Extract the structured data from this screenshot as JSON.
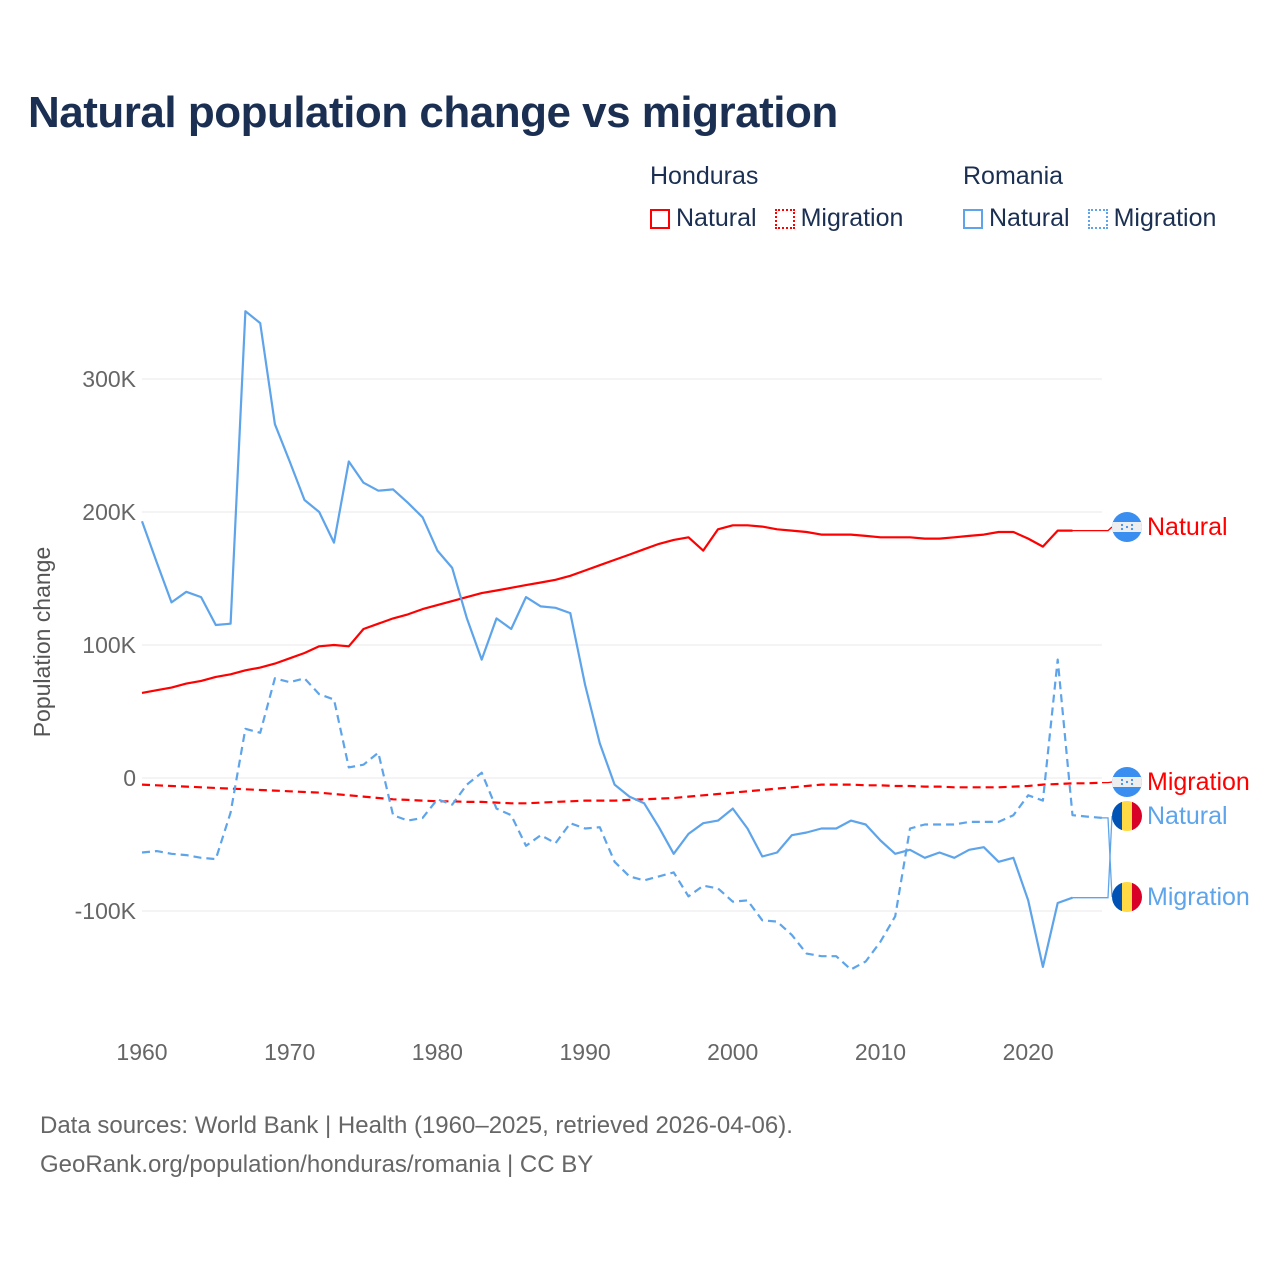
{
  "title": "Natural population change vs migration",
  "legend": {
    "groups": [
      {
        "name": "Honduras",
        "items": [
          {
            "label": "Natural",
            "style": "solid"
          },
          {
            "label": "Migration",
            "style": "dotted"
          }
        ],
        "color": "#ff0000"
      },
      {
        "name": "Romania",
        "items": [
          {
            "label": "Natural",
            "style": "solid"
          },
          {
            "label": "Migration",
            "style": "dotted"
          }
        ],
        "color": "#5ea4ea"
      }
    ]
  },
  "footer": {
    "line1": "Data sources: World Bank | Health (1960–2025, retrieved 2026-04-06).",
    "line2": "GeoRank.org/population/honduras/romania | CC BY"
  },
  "chart_data": {
    "type": "line",
    "title": "Natural population change vs migration",
    "xlabel": "",
    "ylabel": "Population change",
    "xlim": [
      1960,
      2025
    ],
    "ylim": [
      -175000,
      375000
    ],
    "x_ticks": [
      1960,
      1970,
      1980,
      1990,
      2000,
      2010,
      2020
    ],
    "y_ticks": [
      {
        "value": -100000,
        "label": "-100K"
      },
      {
        "value": 0,
        "label": "0"
      },
      {
        "value": 100000,
        "label": "100K"
      },
      {
        "value": 200000,
        "label": "200K"
      },
      {
        "value": 300000,
        "label": "300K"
      }
    ],
    "grid": true,
    "legend_position": "top-right",
    "series": [
      {
        "name": "Honduras Natural",
        "country": "Honduras",
        "label": "Natural",
        "color": "#ff0000",
        "dash": "solid",
        "flag": "honduras-flag",
        "start": 1960,
        "values": [
          64,
          66,
          68,
          71,
          73,
          76,
          78,
          81,
          83,
          86,
          90,
          94,
          99,
          100,
          99,
          112,
          116,
          120,
          123,
          127,
          130,
          133,
          136,
          139,
          141,
          143,
          145,
          147,
          149,
          152,
          156,
          160,
          164,
          168,
          172,
          176,
          179,
          181,
          171,
          187,
          190,
          190,
          189,
          187,
          186,
          185,
          183,
          183,
          183,
          182,
          181,
          181,
          181,
          180,
          180,
          181,
          182,
          183,
          185,
          185,
          180,
          174,
          186,
          186
        ]
      },
      {
        "name": "Honduras Migration",
        "country": "Honduras",
        "label": "Migration",
        "color": "#ff0000",
        "dash": "dashed",
        "flag": "honduras-flag",
        "start": 1960,
        "values": [
          -5,
          -5.5,
          -6,
          -6.5,
          -7,
          -7.5,
          -8,
          -8.5,
          -9,
          -9.5,
          -10,
          -10.5,
          -11,
          -12,
          -13,
          -14,
          -15,
          -16,
          -16.5,
          -17,
          -17.5,
          -17.5,
          -18,
          -18,
          -18.5,
          -19,
          -19,
          -18.5,
          -18,
          -17.5,
          -17,
          -17,
          -17,
          -16.5,
          -16,
          -15.5,
          -15,
          -14,
          -13,
          -12,
          -11,
          -10,
          -9,
          -8,
          -7,
          -6,
          -5,
          -5,
          -5,
          -5.5,
          -5.5,
          -6,
          -6,
          -6.5,
          -6.5,
          -7,
          -7,
          -7,
          -7,
          -6.5,
          -6,
          -5,
          -4.5,
          -4,
          -4,
          -3.5
        ]
      },
      {
        "name": "Romania Natural",
        "country": "Romania",
        "label": "Natural",
        "color": "#5ea4ea",
        "dash": "solid",
        "flag": "romania-flag",
        "start": 1960,
        "values": [
          193,
          162,
          132,
          140,
          136,
          115,
          116,
          351,
          342,
          266,
          238,
          209,
          200,
          177,
          238,
          222,
          216,
          217,
          207,
          196,
          171,
          158,
          120,
          89,
          120,
          112,
          136,
          129,
          128,
          124,
          70,
          26,
          -5,
          -14,
          -19,
          -37,
          -57,
          -42,
          -34,
          -32,
          -23,
          -38,
          -59,
          -56,
          -43,
          -41,
          -38,
          -38,
          -32,
          -35,
          -47,
          -57,
          -54,
          -60,
          -56,
          -60,
          -54,
          -52,
          -63,
          -60,
          -92,
          -142,
          -94,
          -90
        ]
      },
      {
        "name": "Romania Migration",
        "country": "Romania",
        "label": "Migration",
        "color": "#5ea4ea",
        "dash": "dashed",
        "flag": "romania-flag",
        "start": 1960,
        "values": [
          -56,
          -55,
          -57,
          -58,
          -60,
          -61,
          -26,
          37,
          34,
          75,
          72,
          75,
          63,
          59,
          8,
          10,
          19,
          -28,
          -32,
          -30,
          -16,
          -20,
          -5,
          4,
          -23,
          -28,
          -51,
          -43,
          -49,
          -34,
          -38,
          -37,
          -63,
          -74,
          -77,
          -74,
          -71,
          -89,
          -81,
          -83,
          -93,
          -92,
          -107,
          -108,
          -118,
          -132,
          -134,
          -134,
          -144,
          -138,
          -123,
          -104,
          -38,
          -35,
          -35,
          -35,
          -33,
          -33,
          -33,
          -28,
          -13,
          -17,
          89,
          -28,
          -29,
          -30
        ]
      }
    ],
    "value_unit": "thousands"
  }
}
